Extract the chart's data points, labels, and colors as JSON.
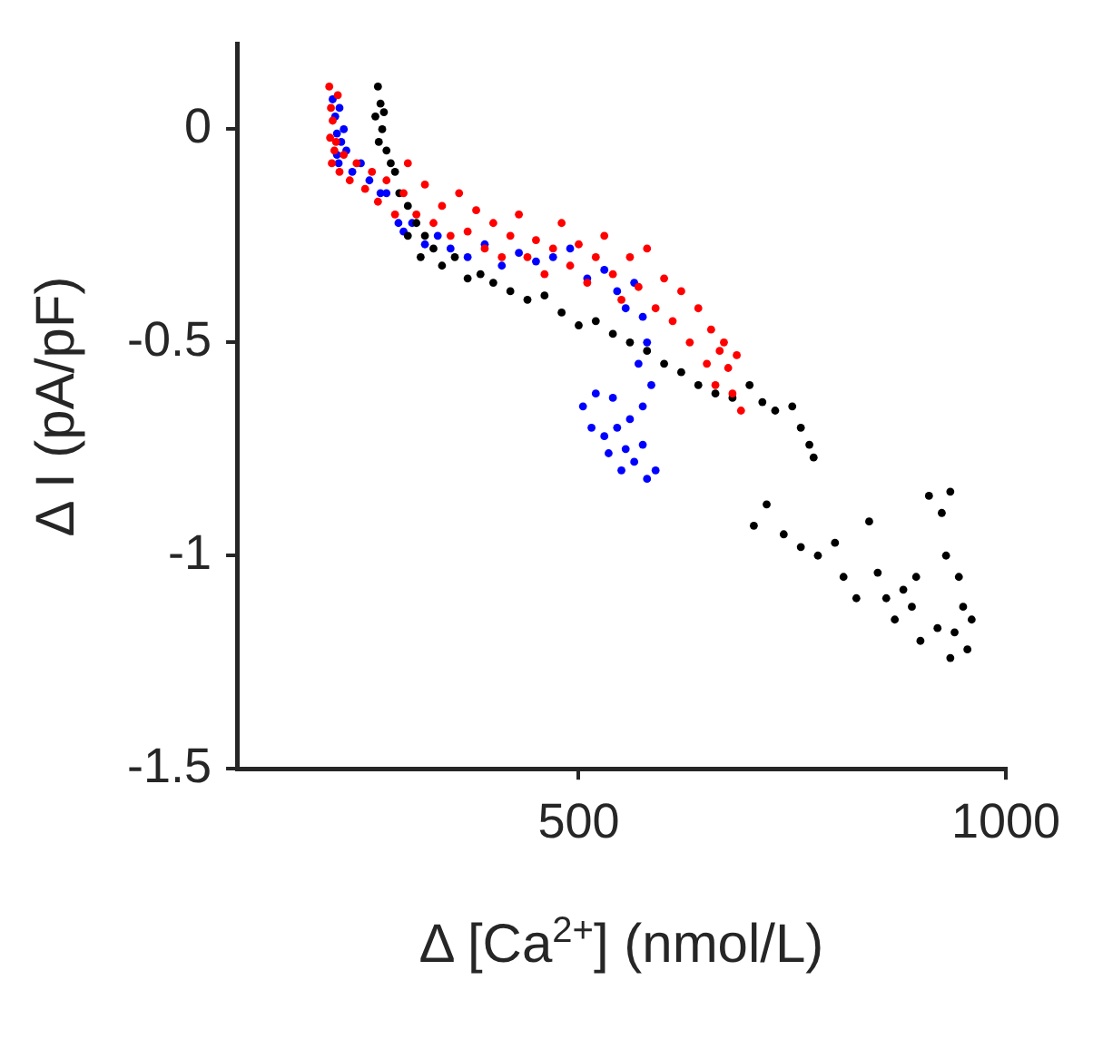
{
  "chart_data": {
    "type": "scatter",
    "xlabel": "Δ [Ca$^{2+}$] (nmol/L)",
    "ylabel": "Δ I (pA/pF)",
    "xlim": [
      100,
      1000
    ],
    "xticks": [
      500,
      1000
    ],
    "ylim": [
      -1.5,
      0.2
    ],
    "yticks": [
      0,
      -0.5,
      -1,
      -1.5
    ],
    "grid": false,
    "marker": "circle",
    "series": [
      {
        "color": "#ff0000",
        "x": [
          208,
          210,
          212,
          209,
          214,
          211,
          218,
          216,
          220,
          225,
          232,
          240,
          250,
          258,
          265,
          275,
          285,
          295,
          300,
          310,
          320,
          330,
          340,
          350,
          360,
          370,
          380,
          390,
          400,
          410,
          420,
          430,
          440,
          450,
          460,
          470,
          480,
          490,
          500,
          510,
          520,
          530,
          540,
          550,
          560,
          570,
          580,
          590,
          600,
          610,
          620,
          630,
          640,
          650,
          655,
          660,
          665,
          670,
          675,
          680,
          685,
          690
        ],
        "values": [
          0.1,
          0.05,
          0.02,
          -0.02,
          -0.05,
          -0.08,
          0.08,
          -0.03,
          -0.1,
          -0.06,
          -0.12,
          -0.08,
          -0.14,
          -0.1,
          -0.17,
          -0.12,
          -0.2,
          -0.15,
          -0.08,
          -0.2,
          -0.13,
          -0.22,
          -0.18,
          -0.25,
          -0.15,
          -0.24,
          -0.19,
          -0.28,
          -0.22,
          -0.3,
          -0.25,
          -0.2,
          -0.3,
          -0.26,
          -0.34,
          -0.28,
          -0.22,
          -0.32,
          -0.27,
          -0.36,
          -0.3,
          -0.25,
          -0.34,
          -0.4,
          -0.3,
          -0.37,
          -0.28,
          -0.42,
          -0.35,
          -0.45,
          -0.38,
          -0.5,
          -0.42,
          -0.55,
          -0.47,
          -0.6,
          -0.52,
          -0.5,
          -0.56,
          -0.62,
          -0.53,
          -0.66
        ]
      },
      {
        "color": "#000000",
        "x": [
          265,
          268,
          262,
          270,
          266,
          275,
          272,
          280,
          285,
          290,
          300,
          310,
          320,
          330,
          300,
          315,
          340,
          355,
          370,
          385,
          400,
          420,
          440,
          460,
          480,
          500,
          520,
          540,
          560,
          580,
          600,
          620,
          640,
          660,
          680,
          700,
          715,
          730,
          750,
          760,
          770,
          775,
          720,
          705,
          740,
          760,
          780,
          800,
          810,
          825,
          840,
          850,
          860,
          870,
          880,
          895,
          910,
          925,
          935,
          930,
          945,
          950,
          940,
          960,
          955,
          935,
          920,
          900,
          890
        ],
        "values": [
          0.1,
          0.06,
          0.03,
          0.0,
          -0.03,
          -0.05,
          0.04,
          -0.08,
          -0.1,
          -0.15,
          -0.18,
          -0.22,
          -0.25,
          -0.28,
          -0.25,
          -0.3,
          -0.32,
          -0.3,
          -0.35,
          -0.34,
          -0.36,
          -0.38,
          -0.4,
          -0.39,
          -0.43,
          -0.46,
          -0.45,
          -0.48,
          -0.5,
          -0.52,
          -0.55,
          -0.57,
          -0.6,
          -0.62,
          -0.63,
          -0.6,
          -0.64,
          -0.66,
          -0.65,
          -0.7,
          -0.74,
          -0.77,
          -0.88,
          -0.93,
          -0.95,
          -0.98,
          -1.0,
          -0.97,
          -1.05,
          -1.1,
          -0.92,
          -1.04,
          -1.1,
          -1.15,
          -1.08,
          -1.05,
          -0.86,
          -0.9,
          -0.85,
          -1.0,
          -1.05,
          -1.12,
          -1.18,
          -1.15,
          -1.22,
          -1.24,
          -1.17,
          -1.2,
          -1.12
        ]
      },
      {
        "color": "#0000ff",
        "x": [
          212,
          215,
          217,
          217,
          220,
          222,
          219,
          225,
          228,
          235,
          245,
          255,
          268,
          275,
          289,
          295,
          305,
          320,
          335,
          350,
          370,
          390,
          410,
          430,
          450,
          470,
          490,
          510,
          530,
          545,
          555,
          565,
          575,
          580,
          570,
          585,
          575,
          560,
          540,
          520,
          505,
          515,
          530,
          545,
          555,
          565,
          575,
          590,
          580,
          550,
          535
        ],
        "values": [
          0.07,
          0.03,
          -0.01,
          -0.06,
          0.05,
          -0.03,
          -0.08,
          0.0,
          -0.05,
          -0.1,
          -0.08,
          -0.12,
          -0.15,
          -0.15,
          -0.22,
          -0.24,
          -0.22,
          -0.27,
          -0.25,
          -0.28,
          -0.3,
          -0.27,
          -0.32,
          -0.29,
          -0.31,
          -0.3,
          -0.28,
          -0.35,
          -0.33,
          -0.38,
          -0.42,
          -0.36,
          -0.44,
          -0.5,
          -0.55,
          -0.6,
          -0.65,
          -0.68,
          -0.63,
          -0.62,
          -0.65,
          -0.7,
          -0.72,
          -0.7,
          -0.75,
          -0.78,
          -0.74,
          -0.8,
          -0.82,
          -0.8,
          -0.76
        ]
      }
    ]
  }
}
